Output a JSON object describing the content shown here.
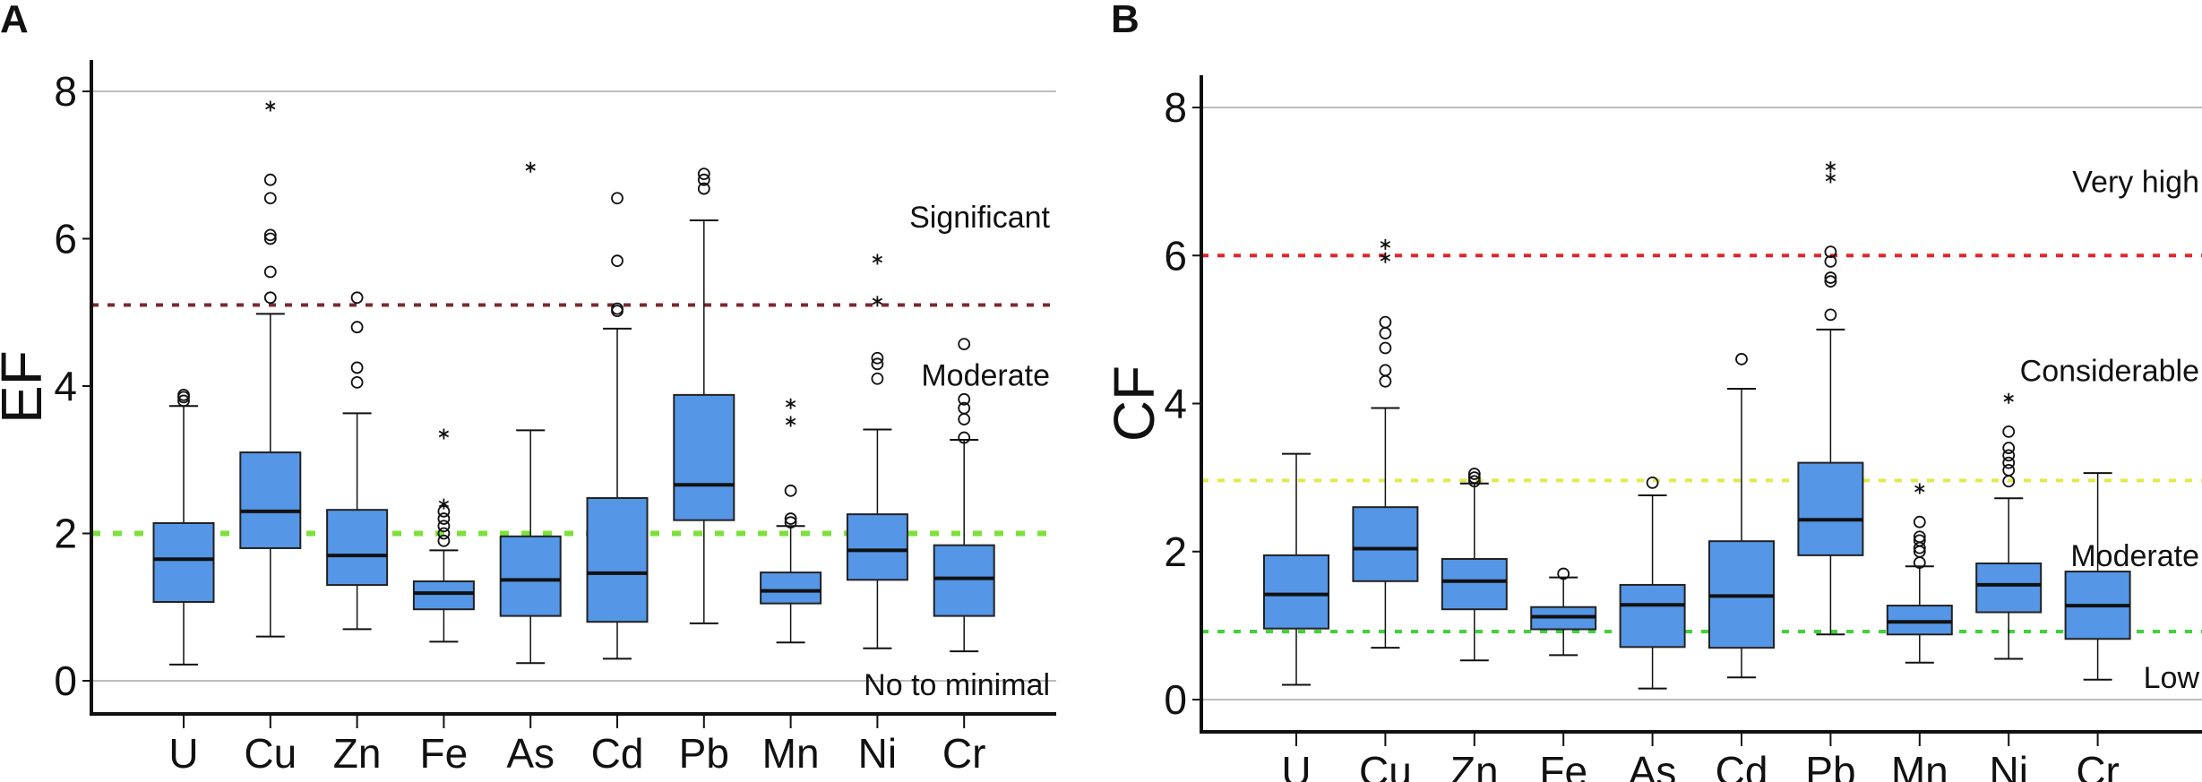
{
  "chart_data": [
    {
      "type": "box",
      "panel_label": "A",
      "ylabel": "EF",
      "ylim": [
        -0.9,
        8.4
      ],
      "yticks": [
        "0",
        "2",
        "4",
        "6",
        "8"
      ],
      "gridlines": [
        0,
        8
      ],
      "box_color": "#5596e6",
      "categories": [
        "U",
        "Cu",
        "Zn",
        "Fe",
        "As",
        "Cd",
        "Pb",
        "Mn",
        "Ni",
        "Cr"
      ],
      "boxes": [
        {
          "min": 0.22,
          "q1": 1.07,
          "median": 1.65,
          "q3": 2.14,
          "max": 3.73,
          "outliers": [
            3.8,
            3.85,
            3.88
          ],
          "extremes": []
        },
        {
          "min": 0.6,
          "q1": 1.8,
          "median": 2.3,
          "q3": 3.1,
          "max": 4.98,
          "outliers": [
            5.2,
            5.55,
            6.0,
            6.05,
            6.55,
            6.8
          ],
          "extremes": [
            7.8
          ]
        },
        {
          "min": 0.7,
          "q1": 1.3,
          "median": 1.7,
          "q3": 2.32,
          "max": 3.63,
          "outliers": [
            4.05,
            4.25,
            4.8,
            5.2
          ],
          "extremes": []
        },
        {
          "min": 0.53,
          "q1": 0.97,
          "median": 1.19,
          "q3": 1.35,
          "max": 1.77,
          "outliers": [
            1.9,
            2.0,
            2.1,
            2.2,
            2.3
          ],
          "extremes": [
            2.4,
            3.35
          ]
        },
        {
          "min": 0.24,
          "q1": 0.88,
          "median": 1.37,
          "q3": 1.96,
          "max": 3.4,
          "outliers": [],
          "extremes": [
            6.97
          ]
        },
        {
          "min": 0.3,
          "q1": 0.8,
          "median": 1.46,
          "q3": 2.48,
          "max": 4.78,
          "outliers": [
            5.02,
            5.05,
            5.7,
            6.55
          ],
          "extremes": []
        },
        {
          "min": 0.78,
          "q1": 2.18,
          "median": 2.66,
          "q3": 3.88,
          "max": 6.25,
          "outliers": [
            6.68,
            6.8,
            6.88
          ],
          "extremes": []
        },
        {
          "min": 0.52,
          "q1": 1.05,
          "median": 1.22,
          "q3": 1.47,
          "max": 2.1,
          "outliers": [
            2.15,
            2.2,
            2.58
          ],
          "extremes": [
            3.52,
            3.76
          ]
        },
        {
          "min": 0.44,
          "q1": 1.37,
          "median": 1.77,
          "q3": 2.26,
          "max": 3.41,
          "outliers": [
            4.1,
            4.3,
            4.38
          ],
          "extremes": [
            5.15,
            5.72
          ]
        },
        {
          "min": 0.4,
          "q1": 0.88,
          "median": 1.39,
          "q3": 1.84,
          "max": 3.27,
          "outliers": [
            3.3,
            3.55,
            3.7,
            3.82,
            4.57
          ],
          "extremes": []
        }
      ],
      "thresholds": [
        {
          "value": 5.1,
          "color": "#7a2a2a"
        },
        {
          "value": 2.0,
          "color": "#7ee03a"
        }
      ],
      "zones": [
        {
          "label": "Significant",
          "at": 6.3
        },
        {
          "label": "Moderate",
          "at": 4.15
        },
        {
          "label": "No to minimal",
          "at": -0.05
        }
      ]
    },
    {
      "type": "box",
      "panel_label": "B",
      "ylabel": "CF",
      "ylim": [
        -0.9,
        8.4
      ],
      "yticks": [
        "0",
        "2",
        "4",
        "6",
        "8"
      ],
      "gridlines": [
        0,
        8
      ],
      "box_color": "#5596e6",
      "categories": [
        "U",
        "Cu",
        "Zn",
        "Fe",
        "As",
        "Cd",
        "Pb",
        "Mn",
        "Ni",
        "Cr"
      ],
      "boxes": [
        {
          "min": 0.2,
          "q1": 0.96,
          "median": 1.42,
          "q3": 1.95,
          "max": 3.32,
          "outliers": [],
          "extremes": []
        },
        {
          "min": 0.7,
          "q1": 1.6,
          "median": 2.04,
          "q3": 2.6,
          "max": 3.94,
          "outliers": [
            4.3,
            4.45,
            4.75,
            4.95,
            5.1
          ],
          "extremes": [
            5.97,
            6.15
          ]
        },
        {
          "min": 0.53,
          "q1": 1.22,
          "median": 1.6,
          "q3": 1.9,
          "max": 2.92,
          "outliers": [
            2.95,
            3.0,
            3.05
          ],
          "extremes": []
        },
        {
          "min": 0.6,
          "q1": 0.95,
          "median": 1.12,
          "q3": 1.25,
          "max": 1.65,
          "outliers": [
            1.7
          ],
          "extremes": []
        },
        {
          "min": 0.15,
          "q1": 0.71,
          "median": 1.28,
          "q3": 1.55,
          "max": 2.76,
          "outliers": [
            2.93
          ],
          "extremes": []
        },
        {
          "min": 0.3,
          "q1": 0.7,
          "median": 1.4,
          "q3": 2.14,
          "max": 4.2,
          "outliers": [
            4.6
          ],
          "extremes": []
        },
        {
          "min": 0.88,
          "q1": 1.95,
          "median": 2.43,
          "q3": 3.2,
          "max": 5.0,
          "outliers": [
            5.2,
            5.65,
            5.7,
            5.92,
            6.05
          ],
          "extremes": [
            7.05,
            7.2
          ]
        },
        {
          "min": 0.5,
          "q1": 0.88,
          "median": 1.05,
          "q3": 1.27,
          "max": 1.8,
          "outliers": [
            1.85,
            2.0,
            2.05,
            2.15,
            2.2,
            2.4
          ],
          "extremes": [
            2.85
          ]
        },
        {
          "min": 0.55,
          "q1": 1.18,
          "median": 1.55,
          "q3": 1.84,
          "max": 2.72,
          "outliers": [
            2.95,
            3.1,
            3.2,
            3.3,
            3.4,
            3.62
          ],
          "extremes": [
            4.07
          ]
        },
        {
          "min": 0.27,
          "q1": 0.82,
          "median": 1.27,
          "q3": 1.73,
          "max": 3.06,
          "outliers": [],
          "extremes": []
        }
      ],
      "thresholds": [
        {
          "value": 6.0,
          "color": "#e0262a"
        },
        {
          "value": 2.96,
          "color": "#e4e84a"
        },
        {
          "value": 0.92,
          "color": "#3fd23a"
        }
      ],
      "zones": [
        {
          "label": "Very high",
          "at": 7.0
        },
        {
          "label": "Considerable",
          "at": 4.45
        },
        {
          "label": "Moderate",
          "at": 1.95
        },
        {
          "label": "Low",
          "at": 0.3
        }
      ]
    }
  ]
}
